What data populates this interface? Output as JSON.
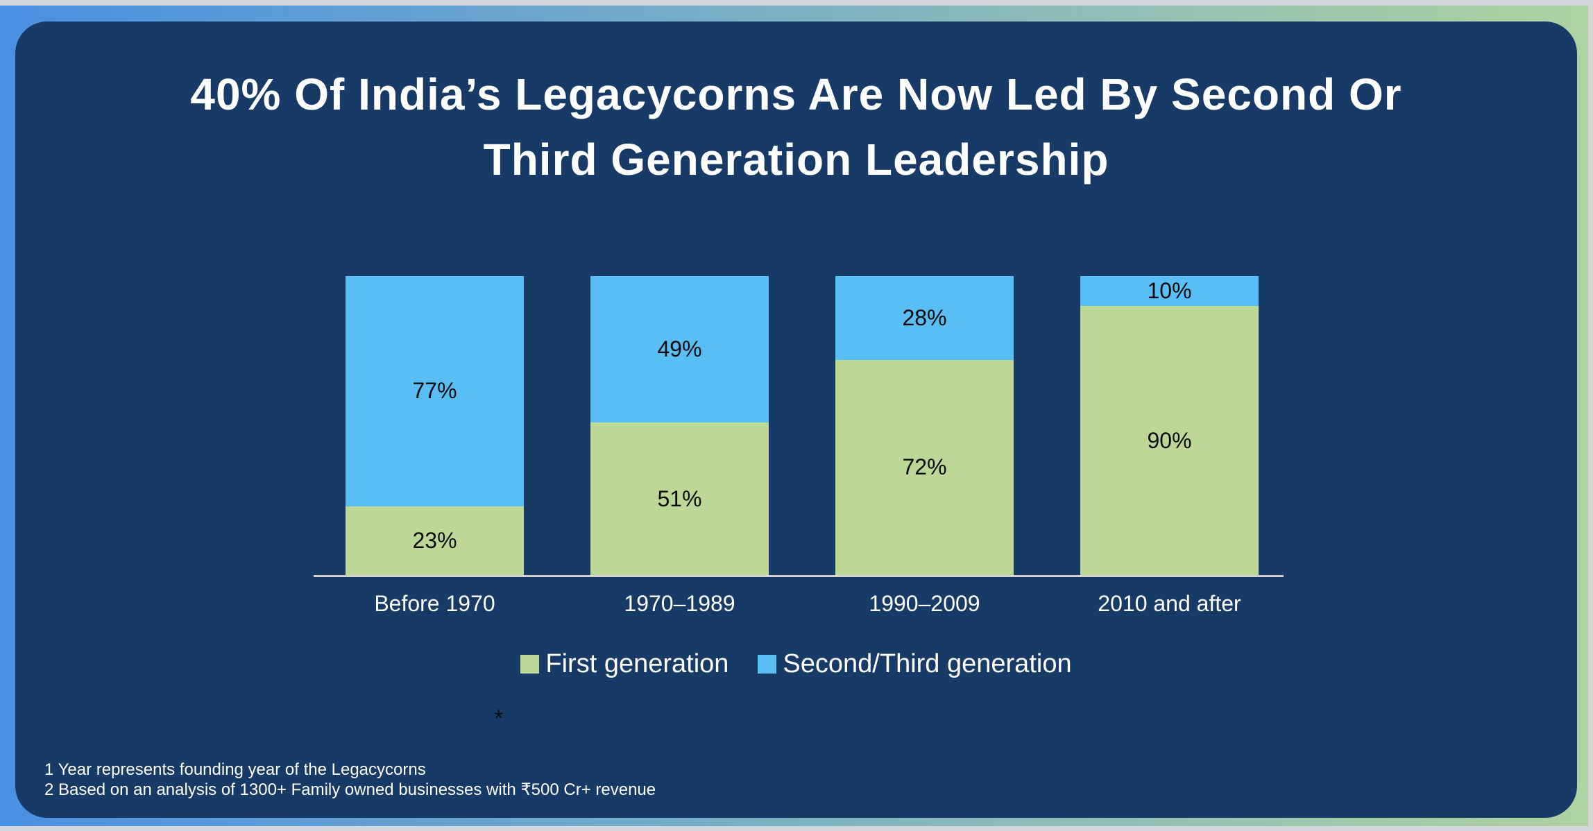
{
  "title": {
    "lines": [
      "40% Of India’s Legacycorns Are Now Led By Second Or",
      "Third Generation Leadership"
    ]
  },
  "chart_data": {
    "type": "bar",
    "stacked": true,
    "title": "40% Of India’s Legacycorns Are Now Led By Second Or Third Generation Leadership",
    "categories": [
      "Before 1970",
      "1970–1989",
      "1990–2009",
      "2010 and after"
    ],
    "series": [
      {
        "name": "First generation",
        "color": "#BDD896",
        "values": [
          23,
          51,
          72,
          90
        ],
        "labels": [
          "23%",
          "51%",
          "72%",
          "90%"
        ]
      },
      {
        "name": "Second/Third generation",
        "color": "#59BEF3",
        "values": [
          77,
          49,
          28,
          10
        ],
        "labels": [
          "77%",
          "49%",
          "28%",
          "10%"
        ]
      }
    ],
    "value_format": "percent",
    "ylim": [
      0,
      100
    ],
    "grid": false,
    "y_axis_visible": false,
    "legend_position": "bottom",
    "xlabel": "",
    "ylabel": ""
  },
  "annotations": {
    "asterisk": "*"
  },
  "footnotes": [
    "1 Year represents founding year of the Legacycorns",
    "2 Based on an analysis of 1300+ Family owned businesses with ₹500 Cr+ revenue"
  ],
  "colors": {
    "panel_background": "#173A66",
    "border_gradient_left": "#4A90E2",
    "border_gradient_right": "#AFD2A2",
    "outer_edge": "#D3D7DA",
    "axis_line": "#D2D2D2",
    "title_text": "#FFFFFF",
    "value_label_text": "#0B0B0B",
    "axis_label_text": "#FFFFFF",
    "first_generation": "#BDD896",
    "second_third_generation": "#59BEF3"
  }
}
